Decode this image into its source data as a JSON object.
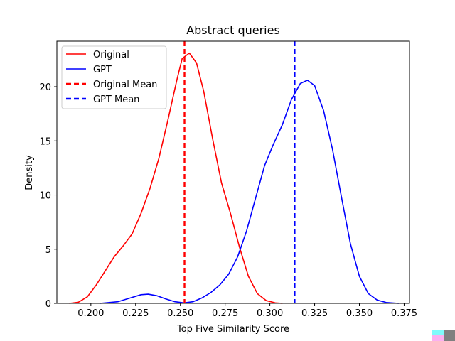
{
  "chart_data": {
    "type": "line",
    "title": "Abstract queries",
    "xlabel": "Top Five Similarity Score",
    "ylabel": "Density",
    "xlim": [
      0.181,
      0.378
    ],
    "ylim": [
      0,
      24.2
    ],
    "xticks": [
      0.2,
      0.225,
      0.25,
      0.275,
      0.3,
      0.325,
      0.35,
      0.375
    ],
    "xtick_labels": [
      "0.200",
      "0.225",
      "0.250",
      "0.275",
      "0.300",
      "0.325",
      "0.350",
      "0.375"
    ],
    "yticks": [
      0,
      5,
      10,
      15,
      20
    ],
    "ytick_labels": [
      "0",
      "5",
      "10",
      "15",
      "20"
    ],
    "grid": false,
    "legend_position": "top-left",
    "series": [
      {
        "name": "Original",
        "color": "#ff0000",
        "style": "solid",
        "x": [
          0.188,
          0.193,
          0.198,
          0.203,
          0.208,
          0.213,
          0.218,
          0.223,
          0.228,
          0.233,
          0.238,
          0.243,
          0.248,
          0.251,
          0.255,
          0.259,
          0.263,
          0.268,
          0.273,
          0.278,
          0.283,
          0.288,
          0.293,
          0.298,
          0.303,
          0.307
        ],
        "y": [
          0.0,
          0.1,
          0.6,
          1.7,
          3.0,
          4.3,
          5.3,
          6.4,
          8.3,
          10.6,
          13.4,
          16.9,
          20.6,
          22.6,
          23.1,
          22.2,
          19.6,
          15.2,
          11.1,
          8.3,
          5.2,
          2.5,
          0.9,
          0.25,
          0.05,
          0.0
        ]
      },
      {
        "name": "GPT",
        "color": "#0000ff",
        "style": "solid",
        "x": [
          0.205,
          0.215,
          0.222,
          0.228,
          0.232,
          0.237,
          0.242,
          0.247,
          0.252,
          0.257,
          0.262,
          0.267,
          0.272,
          0.277,
          0.282,
          0.287,
          0.292,
          0.297,
          0.302,
          0.307,
          0.312,
          0.317,
          0.321,
          0.325,
          0.33,
          0.335,
          0.34,
          0.345,
          0.35,
          0.355,
          0.36,
          0.365,
          0.372
        ],
        "y": [
          0.0,
          0.15,
          0.5,
          0.8,
          0.85,
          0.7,
          0.4,
          0.15,
          0.05,
          0.15,
          0.5,
          1.0,
          1.7,
          2.7,
          4.3,
          6.7,
          9.7,
          12.7,
          14.7,
          16.5,
          18.8,
          20.3,
          20.6,
          20.1,
          17.8,
          14.2,
          9.8,
          5.5,
          2.5,
          0.9,
          0.3,
          0.08,
          0.0
        ]
      }
    ],
    "vlines": [
      {
        "name": "Original Mean",
        "x": 0.2523,
        "color": "#ff0000",
        "style": "dashed"
      },
      {
        "name": "GPT Mean",
        "x": 0.3138,
        "color": "#0000ff",
        "style": "dashed"
      }
    ]
  },
  "legend": {
    "entries": [
      {
        "label": "Original",
        "color": "#ff0000",
        "style": "solid"
      },
      {
        "label": "GPT",
        "color": "#0000ff",
        "style": "solid"
      },
      {
        "label": "Original Mean",
        "color": "#ff0000",
        "style": "dashed"
      },
      {
        "label": "GPT Mean",
        "color": "#0000ff",
        "style": "dashed"
      }
    ]
  }
}
